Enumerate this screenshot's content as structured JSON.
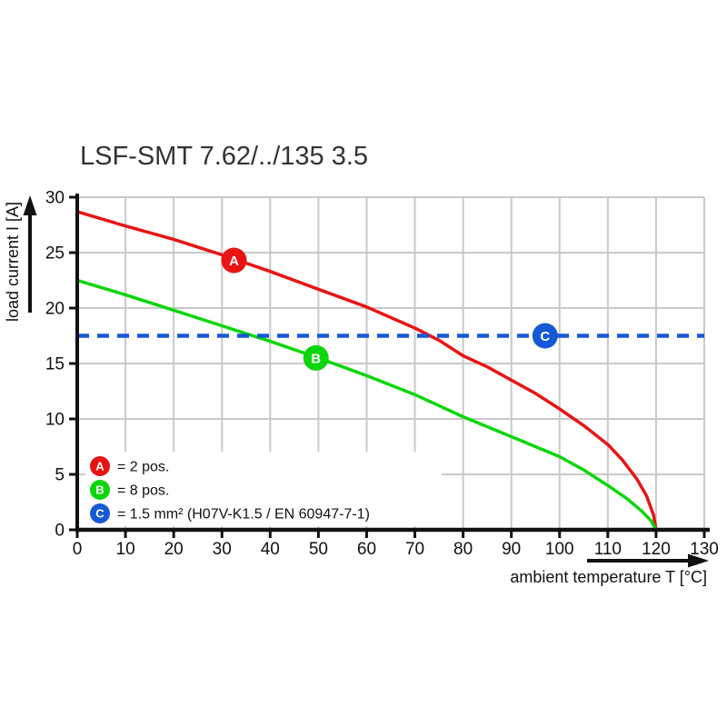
{
  "page": {
    "title": "LSF-SMT 7.62/../135 3.5"
  },
  "chart_data": {
    "type": "line",
    "title": "LSF-SMT 7.62/../135 3.5",
    "xlabel": "ambient temperature T [°C]",
    "ylabel": "load current I [A]",
    "xlim": [
      0,
      130
    ],
    "ylim": [
      0,
      30
    ],
    "xticks": [
      0,
      10,
      20,
      30,
      40,
      50,
      60,
      70,
      80,
      90,
      100,
      110,
      120,
      130
    ],
    "yticks": [
      0,
      5,
      10,
      15,
      20,
      25,
      30
    ],
    "grid": true,
    "grid_color": "#c9c9c9",
    "axis_color": "#111111",
    "legend_position": "inside-bottom-left",
    "series": [
      {
        "name": "A",
        "legend_label": "= 2 pos.",
        "color": "#e81414",
        "style": "solid",
        "marker_at": [
          32.5,
          24.3
        ],
        "points": [
          [
            0,
            28.7
          ],
          [
            10,
            27.4
          ],
          [
            20,
            26.2
          ],
          [
            30,
            24.8
          ],
          [
            40,
            23.3
          ],
          [
            50,
            21.7
          ],
          [
            60,
            20.1
          ],
          [
            70,
            18.2
          ],
          [
            75,
            17.1
          ],
          [
            80,
            15.7
          ],
          [
            85,
            14.7
          ],
          [
            90,
            13.5
          ],
          [
            95,
            12.3
          ],
          [
            100,
            10.9
          ],
          [
            105,
            9.4
          ],
          [
            110,
            7.7
          ],
          [
            113,
            6.3
          ],
          [
            116,
            4.6
          ],
          [
            118,
            3.1
          ],
          [
            119.5,
            1.3
          ],
          [
            120,
            0
          ]
        ]
      },
      {
        "name": "B",
        "legend_label": "= 8 pos.",
        "color": "#0bd60b",
        "style": "solid",
        "marker_at": [
          49.5,
          15.5
        ],
        "points": [
          [
            0,
            22.5
          ],
          [
            10,
            21.2
          ],
          [
            20,
            19.8
          ],
          [
            30,
            18.4
          ],
          [
            40,
            17.0
          ],
          [
            50,
            15.5
          ],
          [
            60,
            13.9
          ],
          [
            70,
            12.2
          ],
          [
            80,
            10.2
          ],
          [
            90,
            8.4
          ],
          [
            100,
            6.6
          ],
          [
            105,
            5.4
          ],
          [
            110,
            4.0
          ],
          [
            114,
            2.8
          ],
          [
            117,
            1.7
          ],
          [
            119,
            0.8
          ],
          [
            120,
            0
          ]
        ]
      },
      {
        "name": "C",
        "legend_label": "= 1.5 mm² (H07V-K1.5 / EN 60947-7-1)",
        "color": "#1659d6",
        "style": "dashed",
        "marker_at": [
          97,
          17.5
        ],
        "points": [
          [
            0,
            17.5
          ],
          [
            130,
            17.5
          ]
        ]
      }
    ]
  }
}
